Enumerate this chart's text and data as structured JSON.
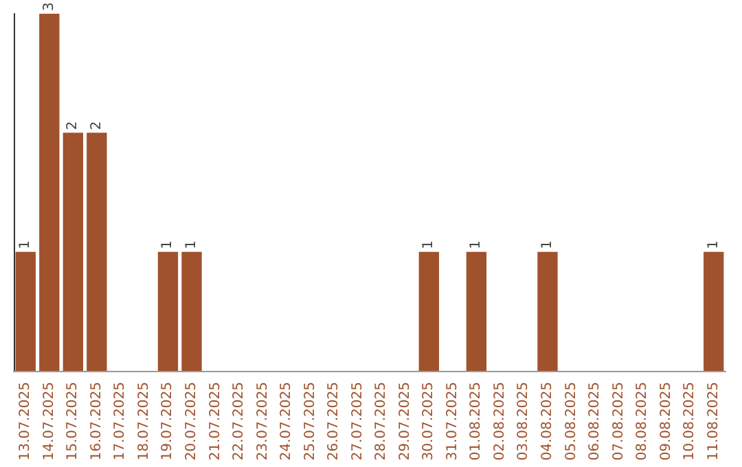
{
  "chart_data": {
    "type": "bar",
    "categories": [
      "13.07.2025",
      "14.07.2025",
      "15.07.2025",
      "16.07.2025",
      "17.07.2025",
      "18.07.2025",
      "19.07.2025",
      "20.07.2025",
      "21.07.2025",
      "22.07.2025",
      "23.07.2025",
      "24.07.2025",
      "25.07.2025",
      "26.07.2025",
      "27.07.2025",
      "28.07.2025",
      "29.07.2025",
      "30.07.2025",
      "31.07.2025",
      "01.08.2025",
      "02.08.2025",
      "03.08.2025",
      "04.08.2025",
      "05.08.2025",
      "06.08.2025",
      "07.08.2025",
      "08.08.2025",
      "09.08.2025",
      "10.08.2025",
      "11.08.2025"
    ],
    "values": [
      1,
      3,
      2,
      2,
      0,
      0,
      1,
      1,
      0,
      0,
      0,
      0,
      0,
      0,
      0,
      0,
      0,
      1,
      0,
      1,
      0,
      0,
      1,
      0,
      0,
      0,
      0,
      0,
      0,
      1
    ],
    "value_labels": [
      "1",
      "3",
      "2",
      "2",
      null,
      null,
      "1",
      "1",
      null,
      null,
      null,
      null,
      null,
      null,
      null,
      null,
      null,
      "1",
      null,
      "1",
      null,
      null,
      "1",
      null,
      null,
      null,
      null,
      null,
      null,
      "1"
    ],
    "color": "#a0522d",
    "grid": false,
    "tick_labels": "x"
  }
}
